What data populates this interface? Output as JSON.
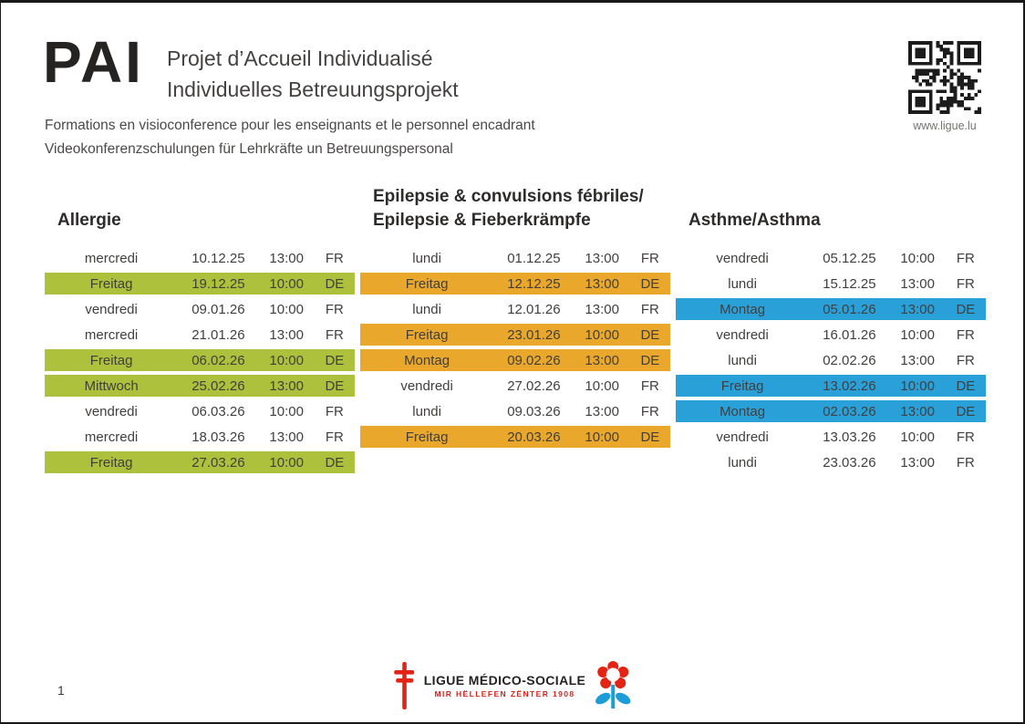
{
  "header": {
    "logo_text": "PAI",
    "title_fr": "Projet d’Accueil Individualisé",
    "title_de": "Individuelles Betreuungsprojekt",
    "subtitle_fr": "Formations en visioconference pour les enseignants et le personnel encadrant",
    "subtitle_de": "Videokonferenzschulungen für Lehrkräfte un Betreuungspersonal"
  },
  "qr": {
    "icon": "qr-code",
    "caption": "www.ligue.lu"
  },
  "colors": {
    "allergie_highlight": "#adc13c",
    "epilepsie_highlight": "#e9a72b",
    "asthme_highlight": "#2aa0d8",
    "accent_red": "#e32313",
    "accent_blue": "#1d9cd8",
    "text_dark": "#2e2c2b"
  },
  "tables": [
    {
      "id": "allergie",
      "title_lines": [
        "Allergie"
      ],
      "highlight_color": "#adc13c",
      "rows": [
        {
          "day": "mercredi",
          "date": "10.12.25",
          "time": "13:00",
          "lang": "FR",
          "highlighted": false
        },
        {
          "day": "Freitag",
          "date": "19.12.25",
          "time": "10:00",
          "lang": "DE",
          "highlighted": true
        },
        {
          "day": "vendredi",
          "date": "09.01.26",
          "time": "10:00",
          "lang": "FR",
          "highlighted": false
        },
        {
          "day": "mercredi",
          "date": "21.01.26",
          "time": "13:00",
          "lang": "FR",
          "highlighted": false
        },
        {
          "day": "Freitag",
          "date": "06.02.26",
          "time": "10:00",
          "lang": "DE",
          "highlighted": true
        },
        {
          "day": "Mittwoch",
          "date": "25.02.26",
          "time": "13:00",
          "lang": "DE",
          "highlighted": true
        },
        {
          "day": "vendredi",
          "date": "06.03.26",
          "time": "10:00",
          "lang": "FR",
          "highlighted": false
        },
        {
          "day": "mercredi",
          "date": "18.03.26",
          "time": "13:00",
          "lang": "FR",
          "highlighted": false
        },
        {
          "day": "Freitag",
          "date": "27.03.26",
          "time": "10:00",
          "lang": "DE",
          "highlighted": true
        }
      ]
    },
    {
      "id": "epilepsie",
      "title_lines": [
        "Epilepsie & convulsions fébriles/",
        "Epilepsie & Fieberkrämpfe"
      ],
      "highlight_color": "#e9a72b",
      "rows": [
        {
          "day": "lundi",
          "date": "01.12.25",
          "time": "13:00",
          "lang": "FR",
          "highlighted": false
        },
        {
          "day": "Freitag",
          "date": "12.12.25",
          "time": "13:00",
          "lang": "DE",
          "highlighted": true
        },
        {
          "day": "lundi",
          "date": "12.01.26",
          "time": "13:00",
          "lang": "FR",
          "highlighted": false
        },
        {
          "day": "Freitag",
          "date": "23.01.26",
          "time": "10:00",
          "lang": "DE",
          "highlighted": true
        },
        {
          "day": "Montag",
          "date": "09.02.26",
          "time": "13:00",
          "lang": "DE",
          "highlighted": true
        },
        {
          "day": "vendredi",
          "date": "27.02.26",
          "time": "10:00",
          "lang": "FR",
          "highlighted": false
        },
        {
          "day": "lundi",
          "date": "09.03.26",
          "time": "13:00",
          "lang": "FR",
          "highlighted": false
        },
        {
          "day": "Freitag",
          "date": "20.03.26",
          "time": "10:00",
          "lang": "DE",
          "highlighted": true
        }
      ]
    },
    {
      "id": "asthme",
      "title_lines": [
        "Asthme/Asthma"
      ],
      "highlight_color": "#2aa0d8",
      "rows": [
        {
          "day": "vendredi",
          "date": "05.12.25",
          "time": "10:00",
          "lang": "FR",
          "highlighted": false
        },
        {
          "day": "lundi",
          "date": "15.12.25",
          "time": "13:00",
          "lang": "FR",
          "highlighted": false
        },
        {
          "day": "Montag",
          "date": "05.01.26",
          "time": "13:00",
          "lang": "DE",
          "highlighted": true
        },
        {
          "day": "vendredi",
          "date": "16.01.26",
          "time": "10:00",
          "lang": "FR",
          "highlighted": false
        },
        {
          "day": "lundi",
          "date": "02.02.26",
          "time": "13:00",
          "lang": "FR",
          "highlighted": false
        },
        {
          "day": "Freitag",
          "date": "13.02.26",
          "time": "10:00",
          "lang": "DE",
          "highlighted": true
        },
        {
          "day": "Montag",
          "date": "02.03.26",
          "time": "13:00",
          "lang": "DE",
          "highlighted": true
        },
        {
          "day": "vendredi",
          "date": "13.03.26",
          "time": "10:00",
          "lang": "FR",
          "highlighted": false
        },
        {
          "day": "lundi",
          "date": "23.03.26",
          "time": "13:00",
          "lang": "FR",
          "highlighted": false
        }
      ]
    }
  ],
  "footer": {
    "org_name": "LIGUE MÉDICO-SOCIALE",
    "org_slogan": "MIR HËLLEFEN ZËNTER 1908",
    "left_icon": "cross-of-lorraine",
    "right_icon": "flower-logo",
    "page_number": "1"
  }
}
